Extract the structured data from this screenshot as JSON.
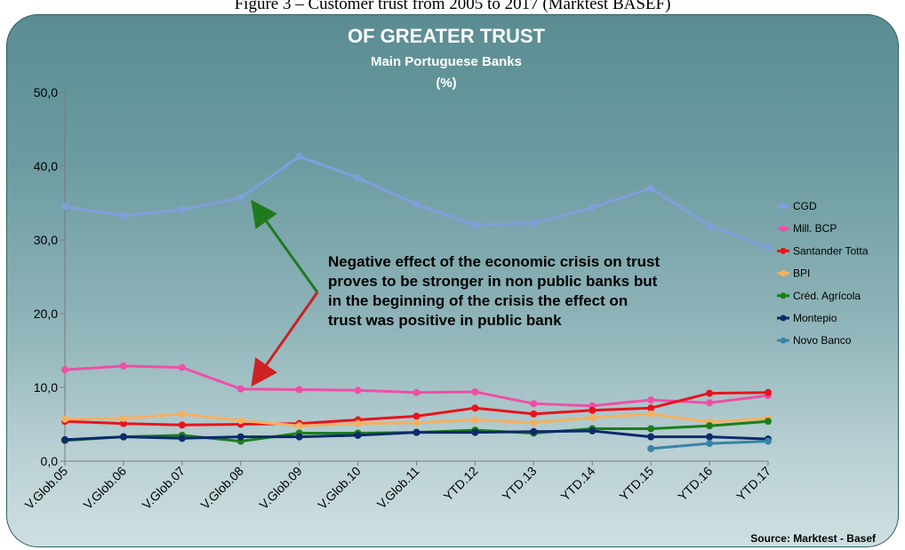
{
  "caption": "Figure 3 – Customer trust from 2005 to 2017 (Marktest BASEF)",
  "source": "Source: Marktest - Basef",
  "annotation": [
    "Negative effect of the economic crisis on trust",
    "proves to be stronger in non public banks but",
    "in the beginning of the crisis the effect on",
    "trust was positive in public bank"
  ],
  "colors": {
    "arrow_up": "#1f7a1f",
    "arrow_down": "#cc2222"
  },
  "chart_data": {
    "type": "line",
    "title": "OF GREATER TRUST",
    "subtitle": "Main Portuguese Banks",
    "unit_label": "(%)",
    "categories": [
      "V.Glob.05",
      "V.Glob.06",
      "V.Glob.07",
      "V.Glob.08",
      "V.Glob.09",
      "V.Glob.10",
      "V.Glob.11",
      "YTD.12",
      "YTD.13",
      "YTD.14",
      "YTD.15",
      "YTD.16",
      "YTD.17"
    ],
    "ylim": [
      0,
      50
    ],
    "yticks": [
      "0,0",
      "10,0",
      "20,0",
      "30,0",
      "40,0",
      "50,0"
    ],
    "grid": false,
    "legend_position": "right",
    "series": [
      {
        "name": "CGD",
        "color": "#7f9fdc",
        "values": [
          34.5,
          33.3,
          34.1,
          35.7,
          41.3,
          38.4,
          34.8,
          32.0,
          32.3,
          34.4,
          37.0,
          31.9,
          29.0
        ]
      },
      {
        "name": "Mill. BCP",
        "color": "#ee4fa8",
        "values": [
          12.4,
          12.9,
          12.7,
          9.8,
          9.7,
          9.6,
          9.3,
          9.4,
          7.8,
          7.5,
          8.3,
          7.9,
          8.9
        ]
      },
      {
        "name": "Santander Totta",
        "color": "#e8141c",
        "values": [
          5.4,
          5.1,
          4.9,
          5.0,
          5.1,
          5.6,
          6.1,
          7.2,
          6.4,
          6.9,
          7.2,
          9.2,
          9.3
        ]
      },
      {
        "name": "BPI",
        "color": "#f5b060",
        "values": [
          5.7,
          5.8,
          6.4,
          5.5,
          4.8,
          5.1,
          5.2,
          5.6,
          5.2,
          5.9,
          6.4,
          5.3,
          5.8
        ]
      },
      {
        "name": "Créd. Agrícola",
        "color": "#1b7e1b",
        "values": [
          2.8,
          3.3,
          3.5,
          2.7,
          3.8,
          3.8,
          3.9,
          4.2,
          3.8,
          4.4,
          4.4,
          4.8,
          5.4
        ]
      },
      {
        "name": "Montepio",
        "color": "#0d2a6b",
        "values": [
          2.9,
          3.3,
          3.1,
          3.3,
          3.3,
          3.5,
          3.9,
          3.9,
          4.0,
          4.1,
          3.3,
          3.3,
          3.0
        ]
      },
      {
        "name": "Novo Banco",
        "color": "#3a84a6",
        "values": [
          null,
          null,
          null,
          null,
          null,
          null,
          null,
          null,
          null,
          null,
          1.7,
          2.4,
          2.7
        ]
      }
    ]
  }
}
